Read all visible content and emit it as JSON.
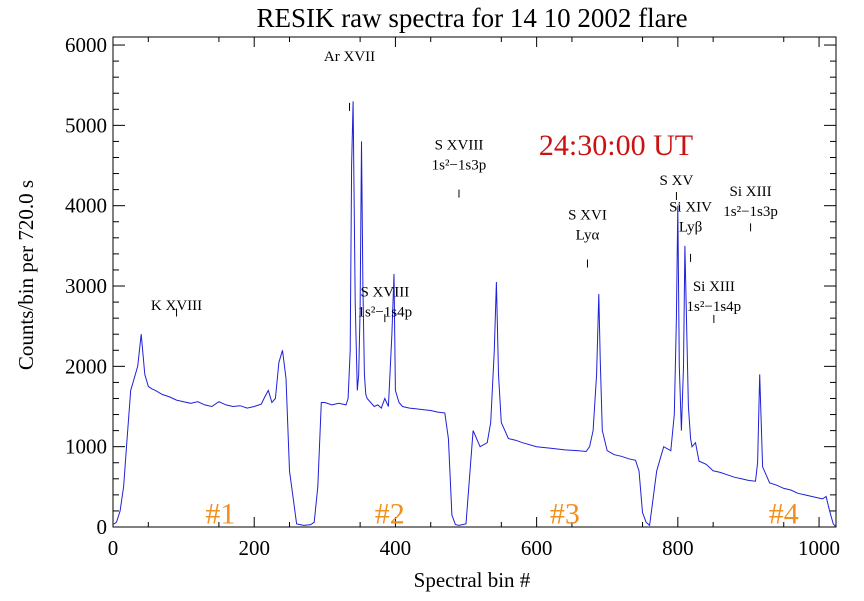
{
  "chart_data": {
    "type": "line",
    "title": "RESIK raw spectra for  14 10 2002  flare",
    "xlabel": "Spectral bin #",
    "ylabel": "Counts/bin per  720.0 s",
    "xlim": [
      0,
      1024
    ],
    "ylim": [
      0,
      6100
    ],
    "xticks": [
      0,
      200,
      400,
      600,
      800,
      1000
    ],
    "xtick_labels": [
      "0",
      "200",
      "400",
      "600",
      "800",
      "1000"
    ],
    "yticks": [
      0,
      1000,
      2000,
      3000,
      4000,
      5000,
      6000
    ],
    "ytick_labels": [
      "0",
      "1000",
      "2000",
      "3000",
      "4000",
      "5000",
      "6000"
    ],
    "grid": false,
    "line_color": "#2020d8",
    "time_label": "24:30:00 UT",
    "time_color": "#cc1111",
    "detector_color": "#f0901e",
    "detectors": [
      {
        "label": "#1",
        "x": 152,
        "y": 420
      },
      {
        "label": "#2",
        "x": 392,
        "y": 420
      },
      {
        "label": "#3",
        "x": 640,
        "y": 420
      },
      {
        "label": "#4",
        "x": 950,
        "y": 420
      }
    ],
    "annotations": [
      {
        "line1": "Ar XVII",
        "line2": "",
        "x": 335,
        "y": 5800,
        "tick_y": 5280
      },
      {
        "line1": "S XVIII",
        "line2": "1s²−1s3p",
        "x": 490,
        "y": 4700,
        "tick_y": 4200
      },
      {
        "line1": "K XVIII",
        "line2": "",
        "x": 90,
        "y": 2700,
        "tick_y": 2720
      },
      {
        "line1": "S XVIII",
        "line2": "1s²−1s4p",
        "x": 385,
        "y": 2870,
        "tick_y": 2650
      },
      {
        "line1": "S XVI",
        "line2": "Lyα",
        "x": 672,
        "y": 3830,
        "tick_y": 3330
      },
      {
        "line1": "S XV",
        "line2": "",
        "x": 798,
        "y": 4260,
        "tick_y": 4170
      },
      {
        "line1": "Si XIV",
        "line2": "Lyβ",
        "x": 818,
        "y": 3930,
        "tick_y": 3400
      },
      {
        "line1": "Si XIII",
        "line2": "1s²−1s3p",
        "x": 903,
        "y": 4120,
        "tick_y": 3780
      },
      {
        "line1": "Si XIII",
        "line2": "1s²−1s4p",
        "x": 851,
        "y": 2940,
        "tick_y": 2640
      }
    ],
    "series": [
      {
        "x": [
          0,
          5,
          10,
          15,
          20,
          25,
          30,
          35,
          40,
          45,
          50,
          55,
          60,
          70,
          80,
          90,
          100,
          110,
          120,
          130,
          140,
          150,
          160,
          170,
          180,
          190,
          200,
          210,
          215,
          220,
          225,
          230,
          235,
          240,
          245,
          250,
          260,
          270,
          280,
          285,
          290,
          295,
          300,
          310,
          320,
          330,
          333,
          336,
          338,
          340,
          343,
          346,
          348,
          350,
          352,
          354,
          356,
          358,
          360,
          365,
          370,
          375,
          380,
          385,
          390,
          395,
          398,
          400,
          405,
          410,
          420,
          430,
          440,
          450,
          460,
          470,
          475,
          480,
          485,
          490,
          500,
          510,
          520,
          530,
          535,
          540,
          543,
          546,
          550,
          555,
          560,
          570,
          580,
          600,
          620,
          640,
          660,
          670,
          675,
          680,
          685,
          688,
          690,
          693,
          700,
          710,
          720,
          730,
          740,
          745,
          750,
          755,
          760,
          770,
          780,
          790,
          795,
          798,
          800,
          802,
          805,
          808,
          810,
          815,
          818,
          820,
          825,
          830,
          840,
          850,
          860,
          870,
          880,
          890,
          900,
          910,
          913,
          916,
          920,
          930,
          940,
          950,
          960,
          970,
          980,
          990,
          1000,
          1005,
          1010,
          1015,
          1020,
          1023
        ],
        "y": [
          30,
          60,
          200,
          500,
          1100,
          1700,
          1850,
          2000,
          2400,
          1900,
          1750,
          1720,
          1700,
          1650,
          1620,
          1580,
          1560,
          1540,
          1560,
          1520,
          1500,
          1560,
          1520,
          1500,
          1510,
          1480,
          1500,
          1530,
          1620,
          1700,
          1550,
          1600,
          2050,
          2200,
          1850,
          700,
          40,
          20,
          30,
          60,
          500,
          1550,
          1550,
          1520,
          1540,
          1520,
          1600,
          2200,
          4500,
          5300,
          2800,
          1700,
          1900,
          2700,
          4800,
          3000,
          1900,
          1650,
          1600,
          1550,
          1500,
          1520,
          1480,
          1600,
          1500,
          2400,
          3150,
          1700,
          1550,
          1500,
          1480,
          1470,
          1460,
          1450,
          1430,
          1420,
          1100,
          150,
          30,
          20,
          40,
          1200,
          1000,
          1050,
          1300,
          2200,
          3050,
          1900,
          1300,
          1200,
          1100,
          1080,
          1050,
          1000,
          980,
          960,
          950,
          940,
          1000,
          1200,
          1900,
          2900,
          2100,
          1200,
          950,
          900,
          880,
          850,
          830,
          700,
          180,
          60,
          20,
          700,
          1000,
          950,
          1400,
          2600,
          4000,
          2000,
          1200,
          2000,
          3500,
          1500,
          1100,
          1000,
          1050,
          820,
          780,
          700,
          680,
          650,
          620,
          600,
          580,
          570,
          800,
          1900,
          750,
          550,
          520,
          480,
          460,
          420,
          400,
          380,
          360,
          350,
          380,
          200,
          40,
          10
        ]
      }
    ]
  }
}
